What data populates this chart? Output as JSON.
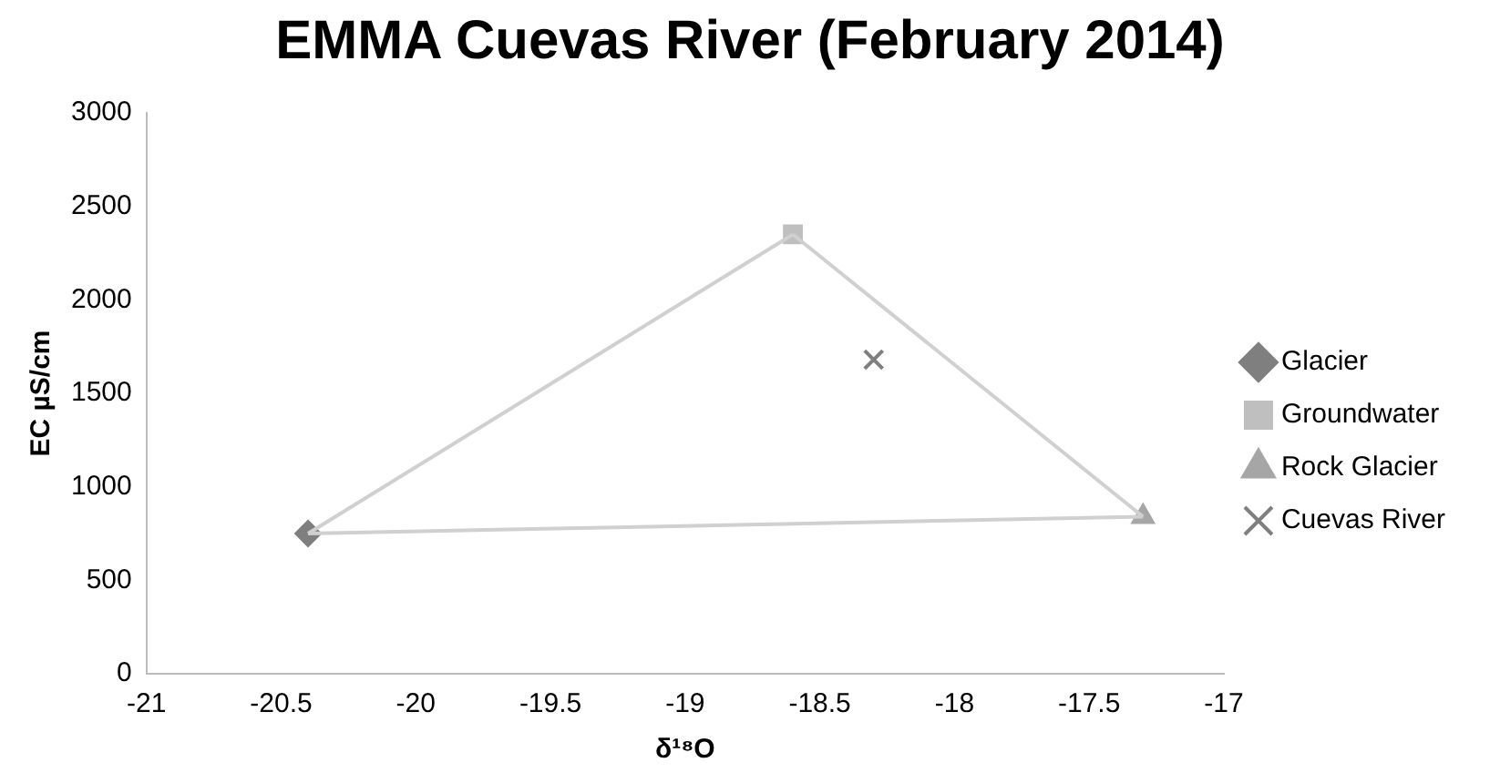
{
  "chart_data": {
    "type": "scatter",
    "title": "EMMA Cuevas River (February 2014)",
    "xlabel": "δ¹⁸O",
    "ylabel": "EC µS/cm",
    "xlim": [
      -21,
      -17
    ],
    "xticks": [
      -21,
      -20.5,
      -20,
      -19.5,
      -19,
      -18.5,
      -18,
      -17.5,
      -17
    ],
    "ylim": [
      0,
      3000
    ],
    "yticks": [
      0,
      500,
      1000,
      1500,
      2000,
      2500,
      3000
    ],
    "grid": false,
    "legend": "right",
    "series": [
      {
        "type": "line",
        "color": "#d0d0d0",
        "marker": "none",
        "x": [
          -20.4,
          -18.6
        ],
        "values": [
          750,
          2350
        ]
      },
      {
        "type": "line",
        "color": "#d0d0d0",
        "marker": "none",
        "x": [
          -18.6,
          -17.3
        ],
        "values": [
          2350,
          840
        ]
      },
      {
        "type": "line",
        "color": "#d0d0d0",
        "marker": "none",
        "x": [
          -20.4,
          -17.3
        ],
        "values": [
          750,
          840
        ]
      },
      {
        "name": "Glacier",
        "color": "#7f7f7f",
        "marker": "diamond",
        "x": [
          -20.4
        ],
        "values": [
          750
        ]
      },
      {
        "name": "Groundwater",
        "color": "#bfbfbf",
        "marker": "square",
        "x": [
          -18.6
        ],
        "values": [
          2350
        ]
      },
      {
        "name": "Rock Glacier",
        "color": "#a6a6a6",
        "marker": "triangle",
        "x": [
          -17.3
        ],
        "values": [
          840
        ]
      },
      {
        "name": "Cuevas River",
        "color": "#7f7f7f",
        "marker": "cross",
        "x": [
          -18.3
        ],
        "values": [
          1680
        ]
      }
    ]
  }
}
